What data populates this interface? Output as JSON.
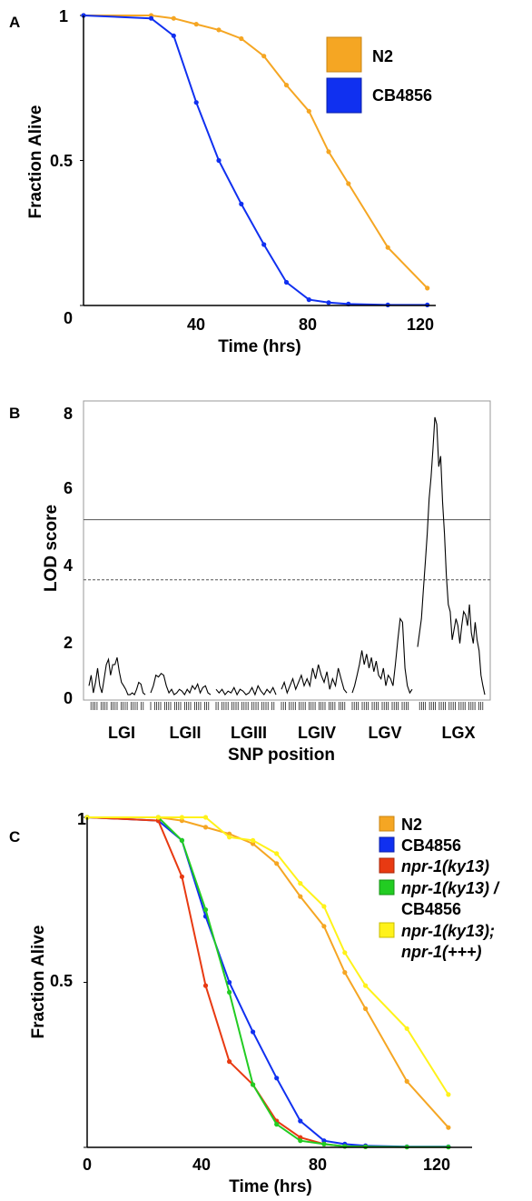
{
  "chart_data": [
    {
      "panel": "A",
      "type": "line",
      "xlabel": "Time (hrs)",
      "ylabel": "Fraction Alive",
      "xlim": [
        0,
        125
      ],
      "ylim": [
        0,
        1
      ],
      "xticks": [
        "40",
        "80",
        "120"
      ],
      "yticks": [
        "0",
        "0.5",
        "1"
      ],
      "legend": "top-right",
      "series": [
        {
          "name": "N2",
          "color": "#F5A623",
          "points": [
            [
              0,
              1
            ],
            [
              24,
              1
            ],
            [
              32,
              0.99
            ],
            [
              40,
              0.97
            ],
            [
              48,
              0.95
            ],
            [
              56,
              0.92
            ],
            [
              64,
              0.86
            ],
            [
              72,
              0.76
            ],
            [
              80,
              0.67
            ],
            [
              87,
              0.53
            ],
            [
              94,
              0.42
            ],
            [
              108,
              0.2
            ],
            [
              122,
              0.06
            ]
          ]
        },
        {
          "name": "CB4856",
          "color": "#1030F0",
          "points": [
            [
              0,
              1
            ],
            [
              24,
              0.99
            ],
            [
              32,
              0.93
            ],
            [
              40,
              0.7
            ],
            [
              48,
              0.5
            ],
            [
              56,
              0.35
            ],
            [
              64,
              0.21
            ],
            [
              72,
              0.08
            ],
            [
              80,
              0.02
            ],
            [
              87,
              0.01
            ],
            [
              94,
              0.005
            ],
            [
              108,
              0.002
            ],
            [
              122,
              0.002
            ]
          ]
        }
      ]
    },
    {
      "panel": "B",
      "type": "line",
      "xlabel": "SNP position",
      "ylabel": "LOD score",
      "ylim": [
        0,
        8
      ],
      "yticks": [
        "0",
        "2",
        "4",
        "6",
        "8"
      ],
      "chromosomes": [
        "LGI",
        "LGII",
        "LGIII",
        "LGIV",
        "LGV",
        "LGX"
      ],
      "threshold_solid": 5,
      "threshold_dashed": 3.3,
      "segments": [
        [
          0.3,
          0.6,
          0.1,
          0.4,
          0.8,
          0.3,
          0.1,
          0.5,
          0.9,
          1.05,
          0.6,
          0.9,
          0.9,
          1.1,
          0.7,
          0.4,
          0.3,
          0.2,
          0.05,
          0.05,
          0.1,
          0.05,
          0.2,
          0.4,
          0.35,
          0.1,
          0.05
        ],
        [
          0.1,
          0.3,
          0.6,
          0.55,
          0.65,
          0.6,
          0.3,
          0.1,
          0.2,
          0.05,
          0.1,
          0.2,
          0.15,
          0.05,
          0.2,
          0.1,
          0.3,
          0.2,
          0.35,
          0.1,
          0.25,
          0.3,
          0.1,
          0.05
        ],
        [
          0.2,
          0.1,
          0.2,
          0.05,
          0.15,
          0.1,
          0.25,
          0.05,
          0.2,
          0.15,
          0.05,
          0.1,
          0.25,
          0.05,
          0.3,
          0.15,
          0.05,
          0.2,
          0.1,
          0.25,
          0.05
        ],
        [
          0.2,
          0.4,
          0.1,
          0.3,
          0.5,
          0.2,
          0.4,
          0.6,
          0.3,
          0.5,
          0.3,
          0.8,
          0.5,
          0.9,
          0.6,
          0.4,
          0.7,
          0.2,
          0.5,
          0.3,
          0.8,
          0.5,
          0.2,
          0.1
        ],
        [
          0.1,
          0.3,
          0.6,
          0.9,
          1.3,
          0.9,
          1.2,
          0.8,
          1.1,
          0.7,
          1.0,
          0.6,
          0.5,
          0.8,
          0.3,
          0.6,
          0.5,
          0.3,
          0.9,
          1.6,
          2.2,
          2.1,
          0.8,
          0.3,
          0.1,
          0.2
        ],
        [
          1.4,
          1.8,
          2.2,
          3.0,
          3.8,
          4.6,
          5.6,
          6.2,
          7.0,
          7.9,
          7.7,
          6.5,
          6.8,
          5.5,
          4.6,
          3.4,
          2.6,
          2.4,
          1.6,
          1.9,
          2.2,
          2.0,
          1.5,
          2.0,
          2.4,
          2.3,
          2.0,
          2.6,
          1.8,
          1.5,
          2.1,
          1.6,
          1.3,
          0.6,
          0.3,
          0.05
        ]
      ]
    },
    {
      "panel": "C",
      "type": "line",
      "xlabel": "Time (hrs)",
      "ylabel": "Fraction Alive",
      "xlim": [
        0,
        130
      ],
      "ylim": [
        0,
        1
      ],
      "xticks": [
        "0",
        "40",
        "80",
        "120"
      ],
      "yticks": [
        "0.5",
        "1"
      ],
      "legend": "top-right",
      "series": [
        {
          "name": "N2",
          "color": "#F5A623",
          "points": [
            [
              0,
              1
            ],
            [
              24,
              1
            ],
            [
              32,
              0.99
            ],
            [
              40,
              0.97
            ],
            [
              48,
              0.95
            ],
            [
              56,
              0.92
            ],
            [
              64,
              0.86
            ],
            [
              72,
              0.76
            ],
            [
              80,
              0.67
            ],
            [
              87,
              0.53
            ],
            [
              94,
              0.42
            ],
            [
              108,
              0.2
            ],
            [
              122,
              0.06
            ]
          ]
        },
        {
          "name": "CB4856",
          "color": "#1030F0",
          "points": [
            [
              0,
              1
            ],
            [
              24,
              0.99
            ],
            [
              32,
              0.93
            ],
            [
              40,
              0.7
            ],
            [
              48,
              0.5
            ],
            [
              56,
              0.35
            ],
            [
              64,
              0.21
            ],
            [
              72,
              0.08
            ],
            [
              80,
              0.02
            ],
            [
              87,
              0.01
            ],
            [
              94,
              0.005
            ],
            [
              108,
              0.002
            ],
            [
              122,
              0.002
            ]
          ]
        },
        {
          "name": "npr-1(ky13)",
          "color": "#E83A12",
          "points": [
            [
              0,
              1
            ],
            [
              24,
              0.99
            ],
            [
              32,
              0.82
            ],
            [
              40,
              0.49
            ],
            [
              48,
              0.26
            ],
            [
              56,
              0.19
            ],
            [
              64,
              0.08
            ],
            [
              72,
              0.03
            ],
            [
              80,
              0.01
            ],
            [
              87,
              0.003
            ],
            [
              94,
              0.002
            ]
          ]
        },
        {
          "name": "npr-1(ky13) / CB4856",
          "color": "#22CC22",
          "points": [
            [
              0,
              1
            ],
            [
              24,
              1
            ],
            [
              32,
              0.93
            ],
            [
              40,
              0.72
            ],
            [
              48,
              0.47
            ],
            [
              56,
              0.19
            ],
            [
              64,
              0.07
            ],
            [
              72,
              0.02
            ],
            [
              80,
              0.01
            ],
            [
              87,
              0.003
            ],
            [
              94,
              0.002
            ],
            [
              108,
              0.001
            ],
            [
              122,
              0.001
            ]
          ]
        },
        {
          "name": "npr-1(ky13); npr-1(+++)",
          "color": "#FFF21A",
          "points": [
            [
              0,
              1
            ],
            [
              24,
              1
            ],
            [
              32,
              1
            ],
            [
              40,
              1
            ],
            [
              48,
              0.94
            ],
            [
              56,
              0.93
            ],
            [
              64,
              0.89
            ],
            [
              72,
              0.8
            ],
            [
              80,
              0.73
            ],
            [
              87,
              0.59
            ],
            [
              94,
              0.49
            ],
            [
              108,
              0.36
            ],
            [
              122,
              0.16
            ]
          ]
        }
      ]
    }
  ],
  "labels": {
    "panel_a": "A",
    "panel_b": "B",
    "panel_c": "C",
    "a_y0": "0",
    "a_y05": "0.5",
    "a_y1": "1",
    "a_x0": "0",
    "a_x40": "40",
    "a_x80": "80",
    "a_x120": "120",
    "a_xlabel": "Time (hrs)",
    "a_ylabel": "Fraction Alive",
    "a_leg1": "N2",
    "a_leg2": "CB4856",
    "b_ylabel": "LOD score",
    "b_xlabel": "SNP position",
    "b_y0": "0",
    "b_y2": "2",
    "b_y4": "4",
    "b_y6": "6",
    "b_y8": "8",
    "b_lg1": "LGI",
    "b_lg2": "LGII",
    "b_lg3": "LGIII",
    "b_lg4": "LGIV",
    "b_lg5": "LGV",
    "b_lg6": "LGX",
    "c_y05": "0.5",
    "c_y1": "1",
    "c_x0": "0",
    "c_x40": "40",
    "c_x80": "80",
    "c_x120": "120",
    "c_xlabel": "Time (hrs)",
    "c_ylabel": "Fraction Alive",
    "c_leg1": "N2",
    "c_leg2": "CB4856",
    "c_leg3": "npr-1(ky13)",
    "c_leg4a": "npr-1(ky13) /",
    "c_leg4b": "CB4856",
    "c_leg5a": "npr-1(ky13);",
    "c_leg5b": "npr-1(+++)"
  }
}
